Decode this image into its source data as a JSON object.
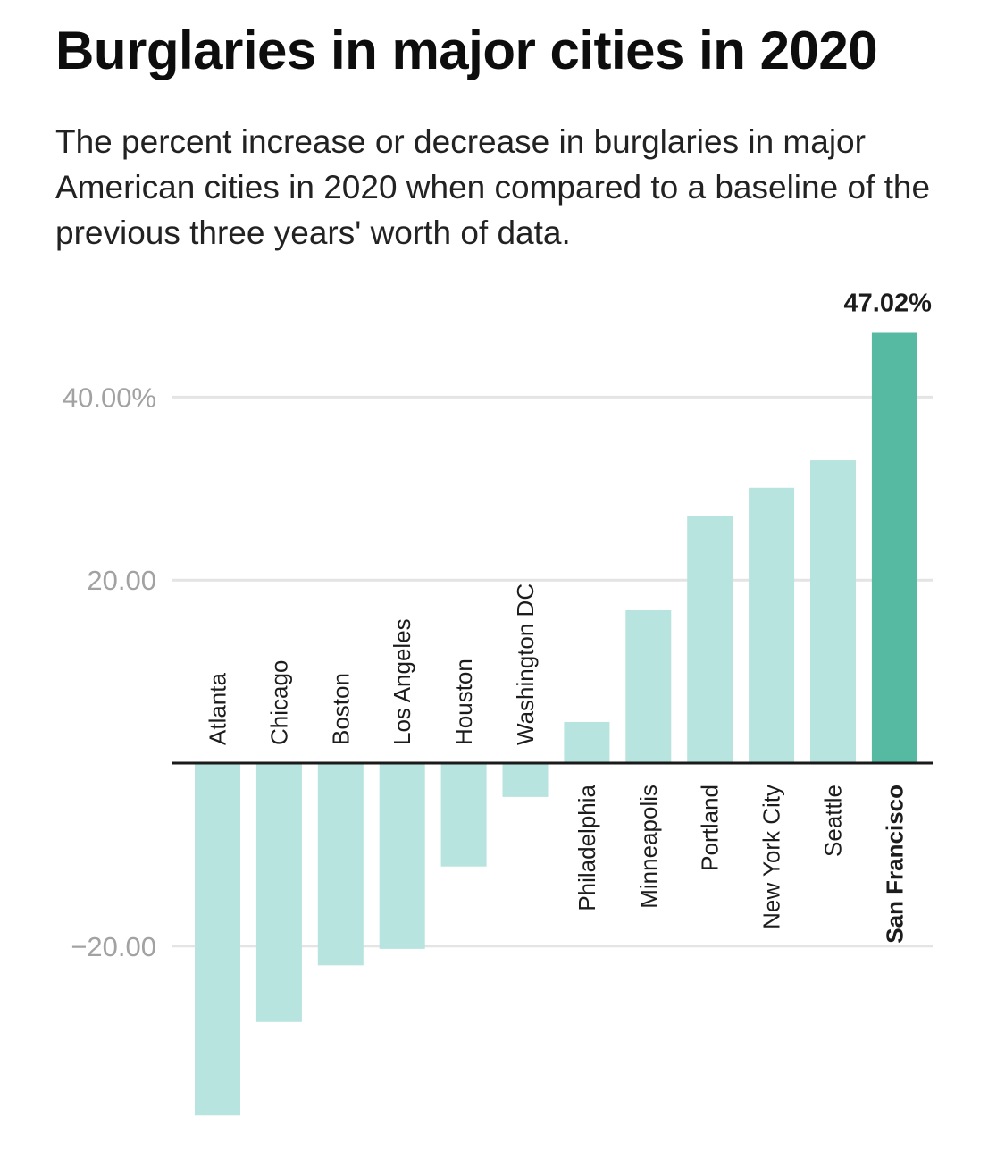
{
  "header": {
    "title": "Burglaries in major cities in 2020",
    "subtitle": "The percent increase or decrease in burglaries in major American cities in 2020 when compared to a baseline of the previous three years' worth of data."
  },
  "colors": {
    "bar": "#b7e4de",
    "highlight": "#56b9a1",
    "gridline": "#e4e4e4",
    "baseline": "#1a1a1a"
  },
  "chart_data": {
    "type": "bar",
    "title": "Burglaries in major cities in 2020",
    "xlabel": "",
    "ylabel": "",
    "ylim": [
      -40,
      50
    ],
    "grid": true,
    "yticks": [
      {
        "value": 40,
        "label": "40.00%"
      },
      {
        "value": 20,
        "label": "20.00"
      },
      {
        "value": -20,
        "label": "−20.00"
      }
    ],
    "categories": [
      "Atlanta",
      "Chicago",
      "Boston",
      "Los Angeles",
      "Houston",
      "Washington DC",
      "Philadelphia",
      "Minneapolis",
      "Portland",
      "New York City",
      "Seattle",
      "San Francisco"
    ],
    "values": [
      -38.5,
      -28.3,
      -22.1,
      -20.3,
      -11.3,
      -3.7,
      4.5,
      16.7,
      27.0,
      30.1,
      33.1,
      47.02
    ],
    "highlight": "San Francisco",
    "annotations": [
      {
        "category": "San Francisco",
        "label": "47.02%"
      }
    ]
  }
}
